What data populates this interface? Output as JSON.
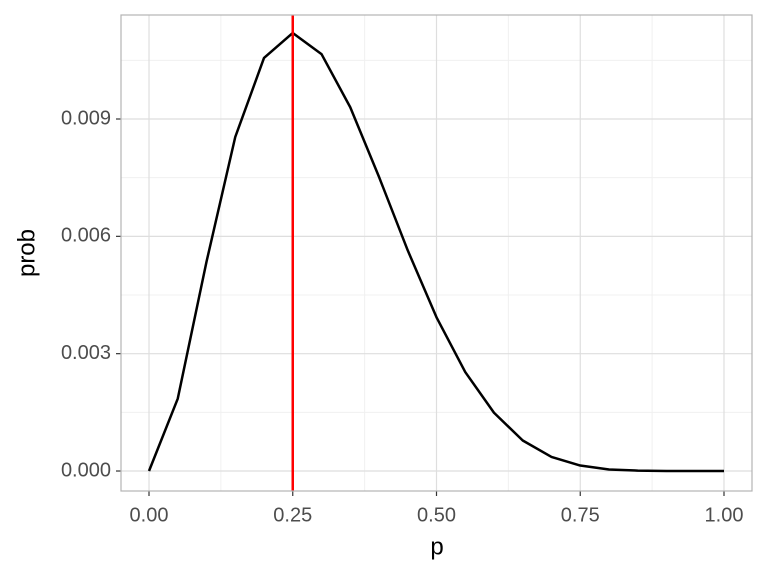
{
  "chart_data": {
    "type": "line",
    "x_label": "p",
    "y_label": "prob",
    "x": [
      0,
      0.05,
      0.1,
      0.15,
      0.2,
      0.25,
      0.3,
      0.35,
      0.4,
      0.45,
      0.5,
      0.55,
      0.6,
      0.65,
      0.7,
      0.75,
      0.8,
      0.85,
      0.9,
      0.95,
      1
    ],
    "series": [
      {
        "color": "#000000",
        "values": [
          0,
          0.00185,
          0.00535,
          0.00854,
          0.01056,
          0.0112,
          0.01066,
          0.0093,
          0.00752,
          0.00564,
          0.00393,
          0.00253,
          0.00149,
          0.00078,
          0.00036,
          0.00014,
          4e-05,
          1e-05,
          0,
          0,
          0
        ]
      }
    ],
    "vline": 0.25,
    "vline_color": "#ff0000",
    "xlim": [
      -0.0487,
      1.0487
    ],
    "xticks": [
      {
        "value": 0,
        "label": "0.00"
      },
      {
        "value": 0.25,
        "label": "0.25"
      },
      {
        "value": 0.5,
        "label": "0.50"
      },
      {
        "value": 0.75,
        "label": "0.75"
      },
      {
        "value": 1,
        "label": "1.00"
      }
    ],
    "ylim": [
      -0.000511,
      0.011659
    ],
    "yticks": [
      {
        "value": 0,
        "label": "0.000"
      },
      {
        "value": 0.003,
        "label": "0.003"
      },
      {
        "value": 0.006,
        "label": "0.006"
      },
      {
        "value": 0.009,
        "label": "0.009"
      }
    ],
    "grid": true
  }
}
